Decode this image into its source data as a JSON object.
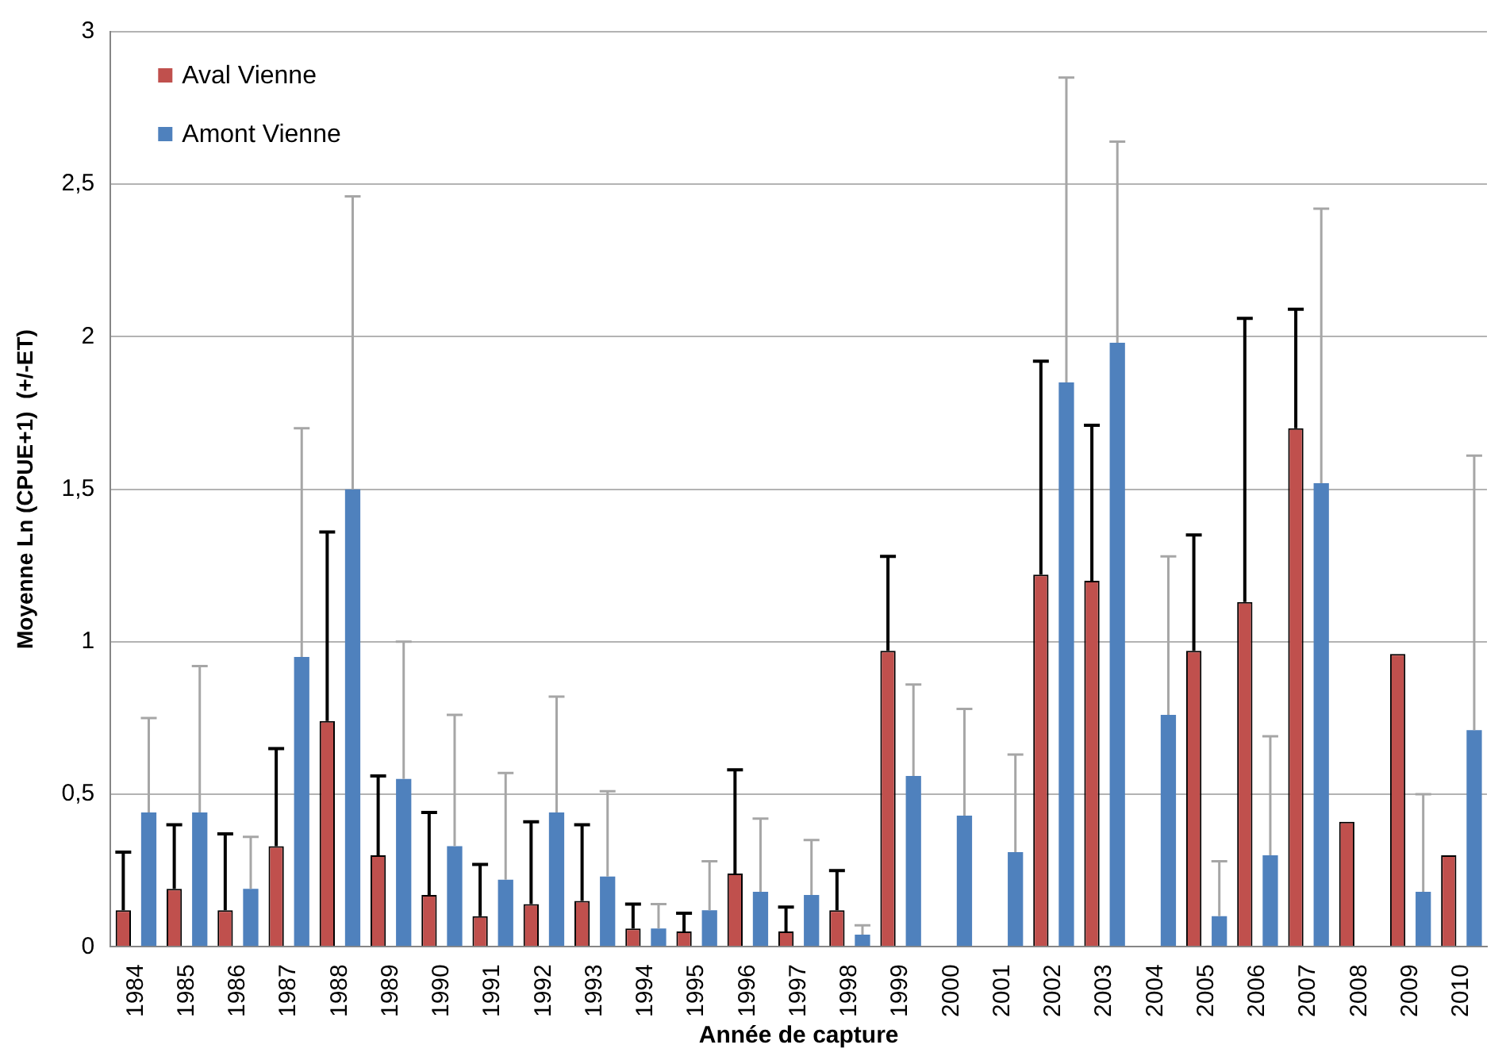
{
  "chart_data": {
    "type": "bar",
    "xlabel": "Année de capture",
    "ylabel": "Moyenne Ln (CPUE+1)  (+/-ET)",
    "categories": [
      "1984",
      "1985",
      "1986",
      "1987",
      "1988",
      "1989",
      "1990",
      "1991",
      "1992",
      "1993",
      "1994",
      "1995",
      "1996",
      "1997",
      "1998",
      "1999",
      "2000",
      "2001",
      "2002",
      "2003",
      "2004",
      "2005",
      "2006",
      "2007",
      "2008",
      "2009",
      "2010"
    ],
    "series": [
      {
        "name": "Aval Vienne",
        "color": "#c0504d",
        "values": [
          0.12,
          0.19,
          0.12,
          0.33,
          0.74,
          0.3,
          0.17,
          0.1,
          0.14,
          0.15,
          0.06,
          0.05,
          0.24,
          0.05,
          0.12,
          0.97,
          null,
          null,
          1.22,
          1.2,
          null,
          0.97,
          1.13,
          1.7,
          0.41,
          0.96,
          0.3
        ],
        "errors": [
          [
            0.12,
            0.31
          ],
          [
            0.19,
            0.4
          ],
          [
            0.12,
            0.37
          ],
          [
            0.33,
            0.65
          ],
          [
            0.74,
            1.36
          ],
          [
            0.3,
            0.56
          ],
          [
            0.17,
            0.44
          ],
          [
            0.1,
            0.27
          ],
          [
            0.14,
            0.41
          ],
          [
            0.15,
            0.4
          ],
          [
            0.06,
            0.14
          ],
          [
            0.05,
            0.11
          ],
          [
            0.24,
            0.58
          ],
          [
            0.05,
            0.13
          ],
          [
            0.12,
            0.25
          ],
          [
            0.97,
            1.28
          ],
          null,
          null,
          [
            1.22,
            1.92
          ],
          [
            1.2,
            1.71
          ],
          null,
          [
            0.97,
            1.35
          ],
          [
            1.13,
            2.06
          ],
          [
            1.7,
            2.09
          ],
          null,
          null,
          null
        ]
      },
      {
        "name": "Amont Vienne",
        "color": "#4f81bd",
        "values": [
          0.44,
          0.44,
          0.19,
          0.95,
          1.5,
          0.55,
          0.33,
          0.22,
          0.44,
          0.23,
          0.06,
          0.12,
          0.18,
          0.17,
          0.04,
          0.56,
          0.43,
          0.31,
          1.85,
          1.98,
          0.76,
          0.1,
          0.3,
          1.52,
          null,
          0.18,
          0.71
        ],
        "errors": [
          [
            0.44,
            0.75
          ],
          [
            0.44,
            0.92
          ],
          [
            0.19,
            0.36
          ],
          [
            0.95,
            1.7
          ],
          [
            1.5,
            2.46
          ],
          [
            0.55,
            1.0
          ],
          [
            0.33,
            0.76
          ],
          [
            0.22,
            0.57
          ],
          [
            0.44,
            0.82
          ],
          [
            0.23,
            0.51
          ],
          [
            0.06,
            0.14
          ],
          [
            0.12,
            0.28
          ],
          [
            0.18,
            0.42
          ],
          [
            0.17,
            0.35
          ],
          [
            0.04,
            0.07
          ],
          [
            0.56,
            0.86
          ],
          [
            0.43,
            0.78
          ],
          [
            0.31,
            0.63
          ],
          [
            1.85,
            2.85
          ],
          [
            1.98,
            2.64
          ],
          [
            0.76,
            1.28
          ],
          [
            0.1,
            0.28
          ],
          [
            0.3,
            0.69
          ],
          [
            1.52,
            2.42
          ],
          null,
          [
            0.18,
            0.5
          ],
          [
            0.71,
            1.61
          ]
        ]
      }
    ],
    "ylim": [
      0,
      3
    ],
    "yticks": [
      0,
      {
        "value": 0.5,
        "label": "0,5"
      },
      1,
      {
        "value": 1.5,
        "label": "1,5"
      },
      2,
      {
        "value": 2.5,
        "label": "2,5"
      },
      3
    ],
    "grid": "y",
    "legend": "top left"
  }
}
